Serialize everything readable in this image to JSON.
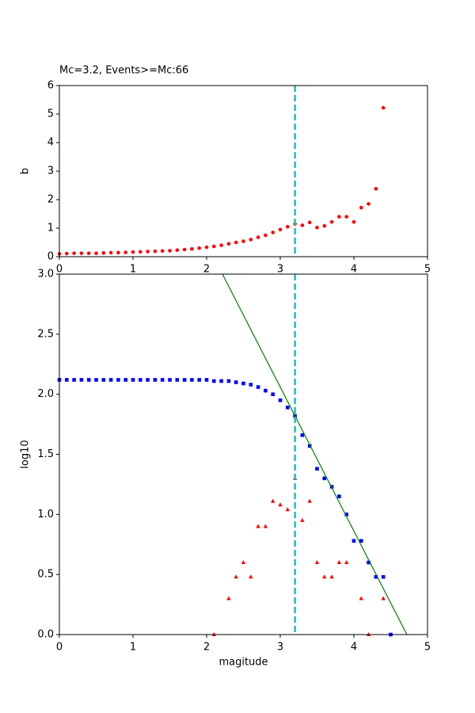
{
  "chart_data": [
    {
      "type": "scatter",
      "title": "Mc=3.2, Events>=Mc:66",
      "y_label": "b",
      "xlim": [
        0,
        5
      ],
      "ylim": [
        0,
        6
      ],
      "xticks": [
        0,
        1,
        2,
        3,
        4,
        5
      ],
      "yticks": [
        0,
        1,
        2,
        3,
        4,
        5,
        6
      ],
      "vline": 3.2,
      "vline_color": "#20c0b0",
      "series": [
        {
          "marker": "o",
          "color": "#ff0000",
          "x": [
            0,
            0.1,
            0.2,
            0.3,
            0.4,
            0.5,
            0.6,
            0.7,
            0.8,
            0.9,
            1.0,
            1.1,
            1.2,
            1.3,
            1.4,
            1.5,
            1.6,
            1.7,
            1.8,
            1.9,
            2.0,
            2.1,
            2.2,
            2.3,
            2.4,
            2.5,
            2.6,
            2.7,
            2.8,
            2.9,
            3.0,
            3.1,
            3.2,
            3.3,
            3.4,
            3.5,
            3.6,
            3.7,
            3.8,
            3.9,
            4.0,
            4.1,
            4.2,
            4.3,
            4.4
          ],
          "values": [
            0.1,
            0.11,
            0.12,
            0.12,
            0.12,
            0.12,
            0.13,
            0.14,
            0.14,
            0.15,
            0.16,
            0.17,
            0.18,
            0.19,
            0.2,
            0.21,
            0.23,
            0.25,
            0.27,
            0.3,
            0.33,
            0.36,
            0.4,
            0.45,
            0.5,
            0.54,
            0.6,
            0.68,
            0.75,
            0.85,
            0.95,
            1.05,
            1.15,
            1.1,
            1.2,
            1.02,
            1.08,
            1.22,
            1.4,
            1.4,
            1.22,
            1.72,
            1.85,
            2.38,
            5.22
          ]
        }
      ]
    },
    {
      "type": "scatter",
      "x_label": "magitude",
      "y_label": "log10",
      "xlim": [
        0,
        5
      ],
      "ylim": [
        0,
        3
      ],
      "xticks": [
        0,
        1,
        2,
        3,
        4,
        5
      ],
      "yticks": [
        {
          "value": 0,
          "label": "0.0"
        },
        0.5,
        {
          "value": 1,
          "label": "1.0"
        },
        1.5,
        {
          "value": 2,
          "label": "2.0"
        },
        2.5,
        {
          "value": 3,
          "label": "3.0"
        }
      ],
      "vline": 3.2,
      "vline_color": "#20c0b0",
      "series": [
        {
          "marker": "s",
          "color": "#0000ff",
          "x": [
            0,
            0.1,
            0.2,
            0.3,
            0.4,
            0.5,
            0.6,
            0.7,
            0.8,
            0.9,
            1.0,
            1.1,
            1.2,
            1.3,
            1.4,
            1.5,
            1.6,
            1.7,
            1.8,
            1.9,
            2.0,
            2.1,
            2.2,
            2.3,
            2.4,
            2.5,
            2.6,
            2.7,
            2.8,
            2.9,
            3.0,
            3.1,
            3.2,
            3.3,
            3.4,
            3.5,
            3.6,
            3.7,
            3.8,
            3.9,
            4.0,
            4.1,
            4.2,
            4.3,
            4.4,
            4.5
          ],
          "values": [
            2.12,
            2.12,
            2.12,
            2.12,
            2.12,
            2.12,
            2.12,
            2.12,
            2.12,
            2.12,
            2.12,
            2.12,
            2.12,
            2.12,
            2.12,
            2.12,
            2.12,
            2.12,
            2.12,
            2.12,
            2.12,
            2.11,
            2.11,
            2.11,
            2.1,
            2.09,
            2.08,
            2.06,
            2.03,
            2.0,
            1.95,
            1.89,
            1.82,
            1.66,
            1.57,
            1.38,
            1.3,
            1.23,
            1.15,
            1.0,
            0.78,
            0.78,
            0.6,
            0.48,
            0.48,
            0
          ]
        },
        {
          "marker": "^",
          "color": "#ff0000",
          "x": [
            2.1,
            2.3,
            2.4,
            2.5,
            2.6,
            2.7,
            2.8,
            2.9,
            3.0,
            3.1,
            3.2,
            3.3,
            3.4,
            3.5,
            3.6,
            3.7,
            3.8,
            3.9,
            4.1,
            4.2,
            4.4
          ],
          "values": [
            0,
            0.3,
            0.48,
            0.6,
            0.48,
            0.9,
            0.9,
            1.11,
            1.08,
            1.04,
            1.3,
            0.95,
            1.11,
            0.6,
            0.48,
            0.48,
            0.6,
            0.6,
            0.3,
            0,
            0.3
          ]
        },
        {
          "marker": "-",
          "color": "#008000",
          "x": [
            2.215,
            4.72
          ],
          "values": [
            3,
            0
          ]
        }
      ]
    }
  ]
}
